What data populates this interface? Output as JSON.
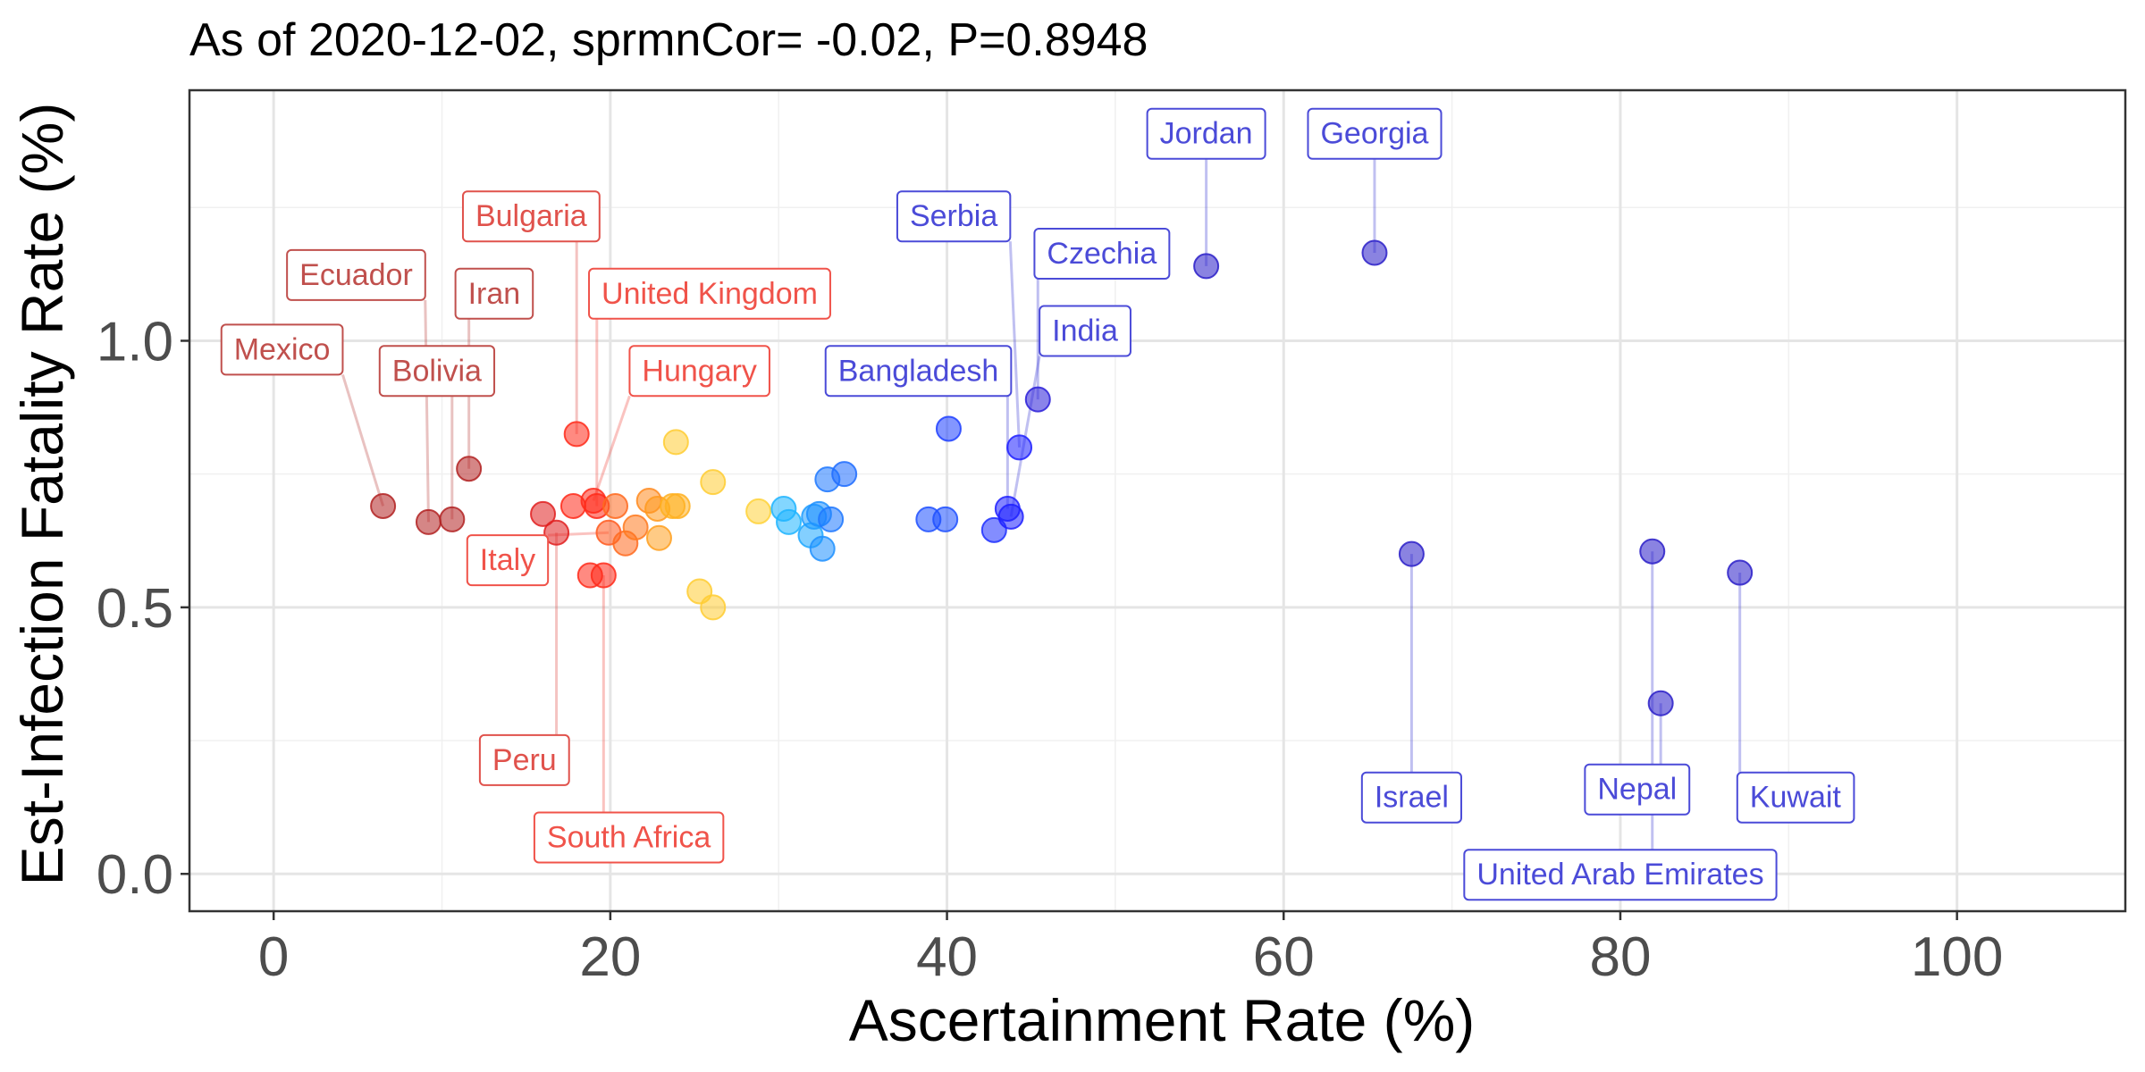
{
  "chart_data": {
    "type": "scatter",
    "title": "As of 2020-12-02, sprmnCor= -0.02, P=0.8948",
    "xlabel": "Ascertainment Rate (%)",
    "ylabel": "Est-Infection Fatality Rate (%)",
    "xlim": [
      -5,
      110
    ],
    "ylim": [
      -0.07,
      1.47
    ],
    "xticks": [
      "0",
      "20",
      "40",
      "60",
      "80",
      "100"
    ],
    "xtick_values": [
      0,
      20,
      40,
      60,
      80,
      100
    ],
    "yticks": [
      "0.0",
      "0.5",
      "1.0"
    ],
    "ytick_values": [
      0,
      0.5,
      1.0
    ],
    "grid": true,
    "legend": "none",
    "points": [
      {
        "x": 6.5,
        "y": 0.69,
        "color": "#b22222",
        "label": "Mexico"
      },
      {
        "x": 9.2,
        "y": 0.66,
        "color": "#b22222",
        "label": "Ecuador"
      },
      {
        "x": 10.6,
        "y": 0.665,
        "color": "#b22222",
        "label": "Bolivia"
      },
      {
        "x": 11.6,
        "y": 0.76,
        "color": "#b22222",
        "label": "Iran"
      },
      {
        "x": 16.0,
        "y": 0.675,
        "color": "#e02020"
      },
      {
        "x": 16.8,
        "y": 0.64,
        "color": "#e02020",
        "label": "Peru"
      },
      {
        "x": 17.8,
        "y": 0.69,
        "color": "#ff2a1a"
      },
      {
        "x": 18.0,
        "y": 0.825,
        "color": "#ff2a1a",
        "label": "Bulgaria"
      },
      {
        "x": 18.8,
        "y": 0.56,
        "color": "#ff2a1a"
      },
      {
        "x": 19.0,
        "y": 0.7,
        "color": "#ff2a1a",
        "label": "Hungary"
      },
      {
        "x": 19.2,
        "y": 0.69,
        "color": "#ff2a1a",
        "label": "United Kingdom"
      },
      {
        "x": 19.6,
        "y": 0.56,
        "color": "#ff2a1a",
        "label": "South Africa"
      },
      {
        "x": 19.9,
        "y": 0.64,
        "color": "#ff5a1f",
        "label": "Italy"
      },
      {
        "x": 20.3,
        "y": 0.69,
        "color": "#ff6a1f"
      },
      {
        "x": 20.9,
        "y": 0.62,
        "color": "#ff6a1f"
      },
      {
        "x": 21.5,
        "y": 0.65,
        "color": "#ff7a1f"
      },
      {
        "x": 22.3,
        "y": 0.7,
        "color": "#ff8a1f"
      },
      {
        "x": 22.8,
        "y": 0.685,
        "color": "#ff9a1f"
      },
      {
        "x": 22.9,
        "y": 0.63,
        "color": "#ffa020"
      },
      {
        "x": 23.7,
        "y": 0.69,
        "color": "#ffb020"
      },
      {
        "x": 24.0,
        "y": 0.69,
        "color": "#ffb020"
      },
      {
        "x": 23.9,
        "y": 0.81,
        "color": "#ffcc33"
      },
      {
        "x": 25.3,
        "y": 0.53,
        "color": "#ffcc33"
      },
      {
        "x": 26.1,
        "y": 0.735,
        "color": "#ffcc33"
      },
      {
        "x": 26.1,
        "y": 0.5,
        "color": "#ffcc33"
      },
      {
        "x": 28.8,
        "y": 0.68,
        "color": "#ffd23a"
      },
      {
        "x": 30.3,
        "y": 0.685,
        "color": "#1eb4ff"
      },
      {
        "x": 30.6,
        "y": 0.66,
        "color": "#1eb4ff"
      },
      {
        "x": 31.9,
        "y": 0.635,
        "color": "#1ea8ff"
      },
      {
        "x": 32.1,
        "y": 0.67,
        "color": "#1e9cff"
      },
      {
        "x": 32.4,
        "y": 0.675,
        "color": "#1e90ff"
      },
      {
        "x": 32.6,
        "y": 0.61,
        "color": "#1e90ff"
      },
      {
        "x": 32.9,
        "y": 0.74,
        "color": "#1e78ff"
      },
      {
        "x": 33.1,
        "y": 0.665,
        "color": "#1e78ff"
      },
      {
        "x": 33.9,
        "y": 0.75,
        "color": "#1e6cff"
      },
      {
        "x": 38.9,
        "y": 0.665,
        "color": "#1e50ff"
      },
      {
        "x": 39.9,
        "y": 0.665,
        "color": "#1e50ff"
      },
      {
        "x": 40.1,
        "y": 0.835,
        "color": "#1e40ff"
      },
      {
        "x": 42.8,
        "y": 0.645,
        "color": "#1e30ff"
      },
      {
        "x": 43.6,
        "y": 0.685,
        "color": "#1e20ff",
        "label": "Bangladesh"
      },
      {
        "x": 43.8,
        "y": 0.67,
        "color": "#1e20ff",
        "label": "India"
      },
      {
        "x": 44.3,
        "y": 0.8,
        "color": "#1e20ff",
        "label": "Serbia"
      },
      {
        "x": 45.4,
        "y": 0.89,
        "color": "#2a1ed8",
        "label": "Czechia"
      },
      {
        "x": 55.4,
        "y": 1.14,
        "color": "#2a1ec8",
        "label": "Jordan"
      },
      {
        "x": 65.4,
        "y": 1.165,
        "color": "#2a1ec8",
        "label": "Georgia"
      },
      {
        "x": 67.6,
        "y": 0.6,
        "color": "#2a1ec8",
        "label": "Israel"
      },
      {
        "x": 81.9,
        "y": 0.605,
        "color": "#2a1ec8",
        "label": "United Arab Emirates"
      },
      {
        "x": 82.4,
        "y": 0.32,
        "color": "#2a1ec8",
        "label": "Nepal"
      },
      {
        "x": 87.1,
        "y": 0.565,
        "color": "#2a1ec8",
        "label": "Kuwait"
      }
    ],
    "labels": [
      {
        "text": "Mexico",
        "x": 0.5,
        "y": 0.985,
        "color": "#c0504d"
      },
      {
        "text": "Ecuador",
        "x": 4.9,
        "y": 1.125,
        "color": "#c0504d"
      },
      {
        "text": "Bolivia",
        "x": 9.7,
        "y": 0.945,
        "color": "#c0504d"
      },
      {
        "text": "Iran",
        "x": 13.1,
        "y": 1.09,
        "color": "#c0504d"
      },
      {
        "text": "Bulgaria",
        "x": 15.3,
        "y": 1.235,
        "color": "#e0524c"
      },
      {
        "text": "United Kingdom",
        "x": 25.9,
        "y": 1.09,
        "color": "#f0534a"
      },
      {
        "text": "Hungary",
        "x": 25.3,
        "y": 0.945,
        "color": "#f0534a"
      },
      {
        "text": "Italy",
        "x": 13.9,
        "y": 0.59,
        "color": "#f0534a"
      },
      {
        "text": "Peru",
        "x": 14.9,
        "y": 0.215,
        "color": "#e0524c"
      },
      {
        "text": "South Africa",
        "x": 21.1,
        "y": 0.07,
        "color": "#f0534a"
      },
      {
        "text": "Serbia",
        "x": 40.4,
        "y": 1.235,
        "color": "#4b4bd8"
      },
      {
        "text": "Czechia",
        "x": 49.2,
        "y": 1.165,
        "color": "#4b4bd8"
      },
      {
        "text": "India",
        "x": 48.2,
        "y": 1.02,
        "color": "#4b4bd8"
      },
      {
        "text": "Bangladesh",
        "x": 38.3,
        "y": 0.945,
        "color": "#4b4bd8"
      },
      {
        "text": "Jordan",
        "x": 55.4,
        "y": 1.39,
        "color": "#4b4bd8"
      },
      {
        "text": "Georgia",
        "x": 65.4,
        "y": 1.39,
        "color": "#4b4bd8"
      },
      {
        "text": "Israel",
        "x": 67.6,
        "y": 0.145,
        "color": "#4b4bd8"
      },
      {
        "text": "Nepal",
        "x": 81.0,
        "y": 0.16,
        "color": "#4b4bd8"
      },
      {
        "text": "Kuwait",
        "x": 90.4,
        "y": 0.145,
        "color": "#4b4bd8"
      },
      {
        "text": "United Arab Emirates",
        "x": 80.0,
        "y": 0.0,
        "color": "#4b4bd8"
      }
    ]
  }
}
